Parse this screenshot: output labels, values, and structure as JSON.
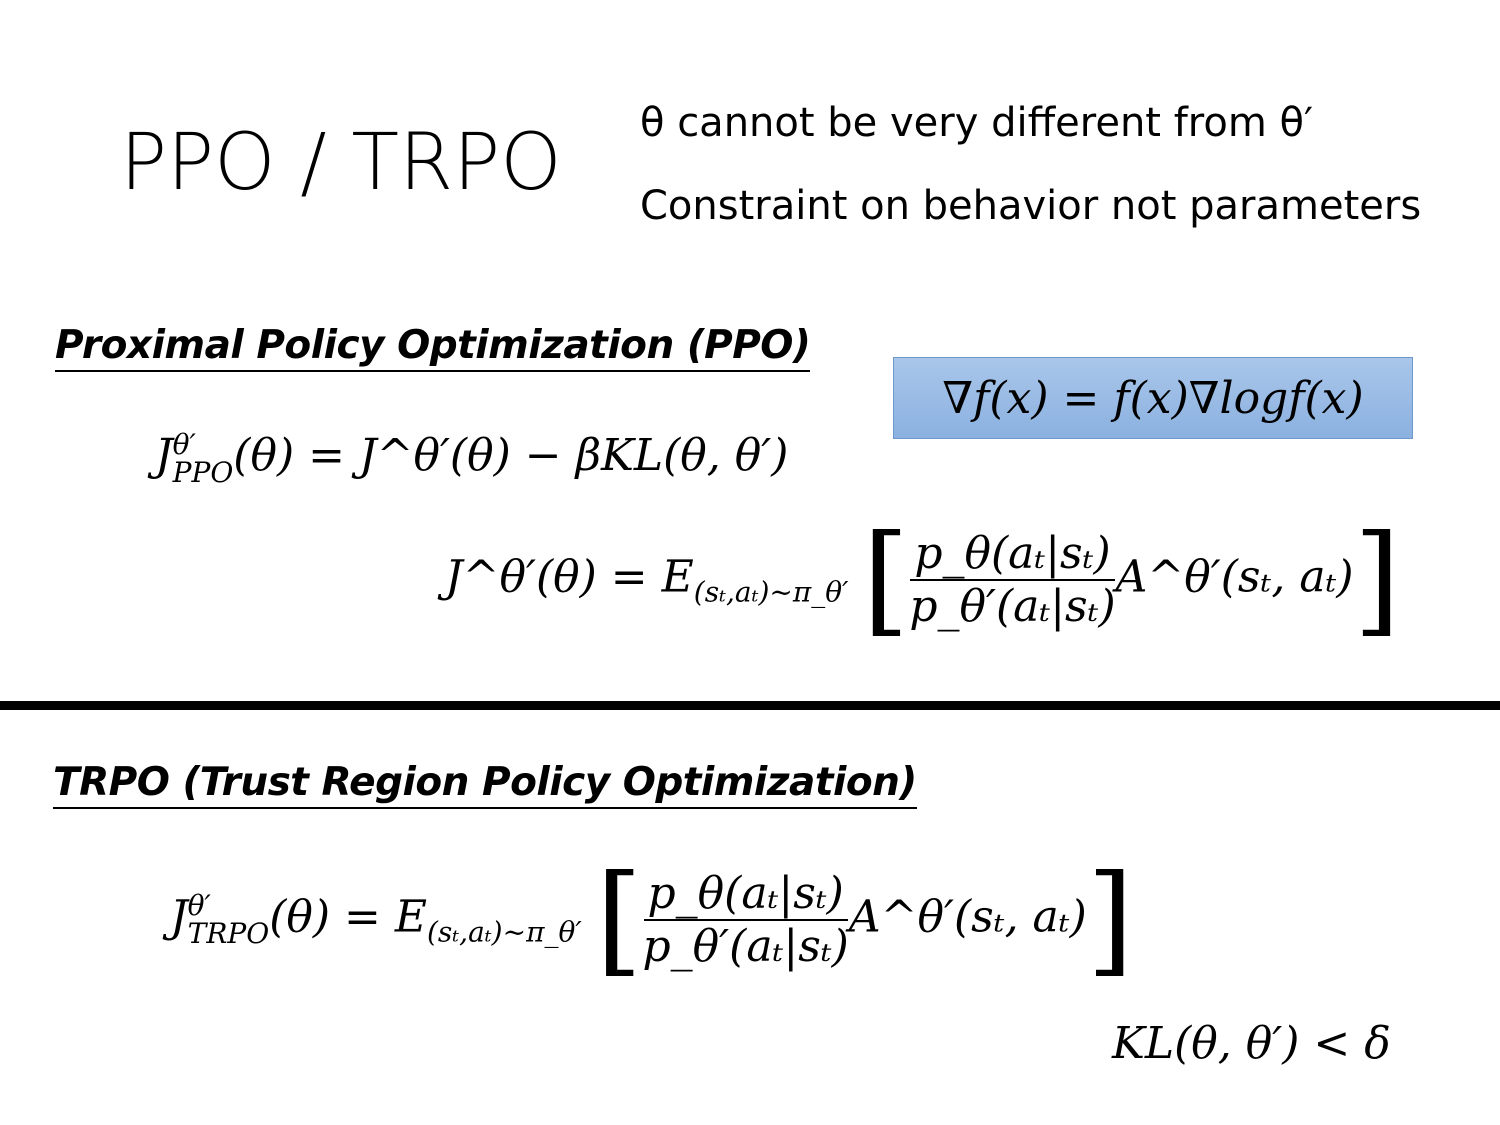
{
  "title": "PPO / TRPO",
  "notes": [
    "θ cannot be very different from θ′",
    "Constraint on behavior not parameters"
  ],
  "ppo": {
    "heading": "Proximal Policy Optimization (PPO)",
    "formula_lhs": "J",
    "formula_lhs_sup": "θ′",
    "formula_lhs_sub": "PPO",
    "formula_rhs": "(θ) = J^θ′(θ) − βKL(θ, θ′)",
    "objective_lhs": "J^θ′(θ) = E",
    "objective_sub": "(sₜ,aₜ)~π_θ′",
    "numerator": "p_θ(aₜ|sₜ)",
    "denominator": "p_θ′(aₜ|sₜ)",
    "advantage": "A^θ′(sₜ, aₜ)"
  },
  "highlight_box": {
    "formula": "∇f(x) = f(x)∇logf(x)",
    "color": "#9dbde6"
  },
  "trpo": {
    "heading": "TRPO (Trust Region Policy Optimization)",
    "formula_lhs": "J",
    "formula_lhs_sup": "θ′",
    "formula_lhs_sub": "TRPO",
    "formula_mid": "(θ) = E",
    "objective_sub": "(sₜ,aₜ)~π_θ′",
    "numerator": "p_θ(aₜ|sₜ)",
    "denominator": "p_θ′(aₜ|sₜ)",
    "advantage": "A^θ′(sₜ, aₜ)",
    "constraint": "KL(θ, θ′) < δ"
  }
}
